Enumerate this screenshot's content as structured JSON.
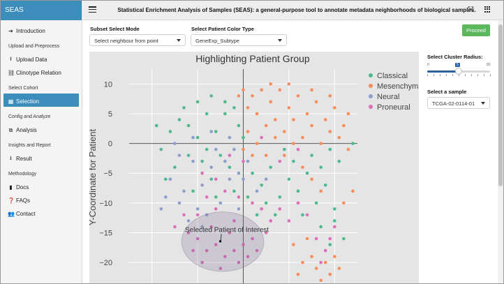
{
  "app": {
    "brand": "SEAS",
    "title": "Statistical Enrichment Analysis of Samples (SEAS): a general-purpose tool to annotate metadata neighborhoods of biological samples."
  },
  "sidebar": {
    "intro": {
      "label": "Introduction",
      "icon": "arrow-right-icon"
    },
    "header_upload": "Upload and Preprocess",
    "upload_data": {
      "label": "Upload Data",
      "icon": "upload-icon"
    },
    "clinotype": {
      "label": "Clinotype Relation",
      "icon": "share-nodes-icon"
    },
    "header_cohort": "Select Cohort",
    "selection": {
      "label": "Selection",
      "icon": "table-icon"
    },
    "header_config": "Config and Analyze",
    "analysis": {
      "label": "Analysis",
      "icon": "network-icon"
    },
    "header_insights": "Insights and Report",
    "result": {
      "label": "Result",
      "icon": "download-icon"
    },
    "header_method": "Methodology",
    "docs": {
      "label": "Docs",
      "icon": "book-icon"
    },
    "faqs": {
      "label": "FAQs",
      "icon": "question-circle-icon"
    },
    "contact": {
      "label": "Contact",
      "icon": "users-icon"
    }
  },
  "controls": {
    "subset_mode": {
      "label": "Subset Select Mode",
      "value": "Select neighbour from point"
    },
    "color_type": {
      "label": "Select Patient Color Type",
      "value": "GeneExp_Subtype"
    },
    "proceed": "Proceed",
    "cluster_radius": {
      "label": "Select Cluster Radius:",
      "min": "0",
      "max": "10",
      "value": "5",
      "fraction": 0.5
    },
    "sample": {
      "label": "Select a sample",
      "value": "TCGA-02-0114-01"
    }
  },
  "chart_data": {
    "type": "scatter",
    "title": "Highlighting Patient Group",
    "ylabel": "Y-Coordinate for Patient",
    "xlabel": "",
    "ylim": [
      -23.5,
      12.5
    ],
    "xlim": [
      -25,
      25
    ],
    "yticks": [
      10,
      5,
      0,
      -5,
      -10,
      -15,
      -20
    ],
    "grid": true,
    "legend_position": "top-right",
    "colors": {
      "Classical": "#4cba8c",
      "Mesenchymal": "#f68d5b",
      "Neural": "#8b9fcf",
      "Proneural": "#de6dbb"
    },
    "legend": [
      "Classical",
      "Mesenchymal",
      "Neural",
      "Proneural"
    ],
    "series": [
      {
        "name": "Classical",
        "points": [
          [
            -16,
            2
          ],
          [
            -14,
            4
          ],
          [
            -12,
            3
          ],
          [
            -10,
            1
          ],
          [
            -8,
            5
          ],
          [
            -6,
            2
          ],
          [
            -4,
            5
          ],
          [
            -2,
            6
          ],
          [
            -15,
            -4
          ],
          [
            -12,
            -2
          ],
          [
            -9,
            -3
          ],
          [
            -7,
            -6
          ],
          [
            -5,
            -2
          ],
          [
            -3,
            -4
          ],
          [
            -13,
            6
          ],
          [
            -10,
            7
          ],
          [
            -7,
            8
          ],
          [
            -4,
            7
          ],
          [
            -1,
            3
          ],
          [
            2,
            -5
          ],
          [
            4,
            -7
          ],
          [
            6,
            -4
          ],
          [
            8,
            -9
          ],
          [
            10,
            -6
          ],
          [
            12,
            -8
          ],
          [
            14,
            -5
          ],
          [
            16,
            -10
          ],
          [
            18,
            -7
          ],
          [
            20,
            -11
          ],
          [
            15,
            -2
          ],
          [
            17,
            -4
          ],
          [
            19,
            -1
          ],
          [
            21,
            -3
          ],
          [
            11,
            -3
          ],
          [
            9,
            -1
          ],
          [
            5,
            -10
          ],
          [
            3,
            -12
          ],
          [
            7,
            -12
          ],
          [
            13,
            -12
          ],
          [
            -18,
            -1
          ],
          [
            -17,
            -6
          ],
          [
            -11,
            -8
          ],
          [
            -6,
            -9
          ],
          [
            -2,
            -8
          ],
          [
            1,
            -9
          ],
          [
            17,
            -14
          ],
          [
            20,
            -13
          ],
          [
            22,
            -16
          ],
          [
            19,
            -17
          ],
          [
            -19,
            3
          ],
          [
            -8,
            -1
          ],
          [
            0,
            1
          ],
          [
            24,
            0
          ]
        ]
      },
      {
        "name": "Mesenchymal",
        "points": [
          [
            0,
            9
          ],
          [
            2,
            8
          ],
          [
            4,
            9
          ],
          [
            6,
            7
          ],
          [
            8,
            9
          ],
          [
            10,
            6
          ],
          [
            12,
            8
          ],
          [
            14,
            5
          ],
          [
            16,
            7
          ],
          [
            18,
            4
          ],
          [
            20,
            6
          ],
          [
            22,
            3
          ],
          [
            3,
            5
          ],
          [
            5,
            3
          ],
          [
            7,
            4
          ],
          [
            9,
            2
          ],
          [
            11,
            4
          ],
          [
            13,
            1
          ],
          [
            15,
            3
          ],
          [
            17,
            0
          ],
          [
            19,
            2
          ],
          [
            21,
            1
          ],
          [
            23,
            -1
          ],
          [
            1,
            2
          ],
          [
            3,
            0
          ],
          [
            5,
            -2
          ],
          [
            7,
            1
          ],
          [
            9,
            -2
          ],
          [
            11,
            0
          ],
          [
            13,
            -4
          ],
          [
            15,
            -6
          ],
          [
            17,
            -8
          ],
          [
            1,
            6
          ],
          [
            6,
            10
          ],
          [
            10,
            10
          ],
          [
            15,
            9
          ],
          [
            19,
            8
          ],
          [
            23,
            5
          ],
          [
            14,
            -16
          ],
          [
            15,
            -19
          ],
          [
            16,
            -21
          ],
          [
            17,
            -23
          ],
          [
            18,
            -20
          ],
          [
            19,
            -22
          ],
          [
            20,
            -19
          ],
          [
            21,
            -21
          ],
          [
            13,
            -20
          ],
          [
            12,
            -22
          ],
          [
            11,
            -17
          ],
          [
            22,
            -10
          ],
          [
            24,
            -8
          ],
          [
            2,
            -2
          ],
          [
            0,
            -1
          ],
          [
            -1,
            8
          ]
        ]
      },
      {
        "name": "Neural",
        "points": [
          [
            -14,
            -2
          ],
          [
            -11,
            -3
          ],
          [
            -9,
            -7
          ],
          [
            -7,
            -4
          ],
          [
            -5,
            -10
          ],
          [
            -3,
            -6
          ],
          [
            -1,
            -5
          ],
          [
            -13,
            -8
          ],
          [
            -10,
            -11
          ],
          [
            -16,
            -6
          ],
          [
            -12,
            -13
          ],
          [
            -8,
            -12
          ],
          [
            -6,
            -1
          ],
          [
            -4,
            -3
          ],
          [
            -2,
            -1
          ],
          [
            -15,
            0
          ],
          [
            -11,
            1
          ],
          [
            -7,
            2
          ],
          [
            -3,
            1
          ],
          [
            -17,
            -9
          ],
          [
            0,
            -6
          ],
          [
            1,
            -3
          ],
          [
            3,
            -8
          ],
          [
            5,
            -6
          ],
          [
            -18,
            -11
          ],
          [
            -14,
            -10
          ],
          [
            -9,
            -14
          ],
          [
            -1,
            -11
          ]
        ]
      },
      {
        "name": "Proneural",
        "points": [
          [
            -12,
            -15
          ],
          [
            -10,
            -16
          ],
          [
            -8,
            -18
          ],
          [
            -6,
            -17
          ],
          [
            -4,
            -19
          ],
          [
            -2,
            -18
          ],
          [
            0,
            -17
          ],
          [
            2,
            -16
          ],
          [
            -3,
            -15
          ],
          [
            -7,
            -14
          ],
          [
            -11,
            -18
          ],
          [
            -9,
            -20
          ],
          [
            -5,
            -21
          ],
          [
            -1,
            -20
          ],
          [
            1,
            -19
          ],
          [
            3,
            -18
          ],
          [
            5,
            -15
          ],
          [
            -13,
            -12
          ],
          [
            -10,
            -12
          ],
          [
            -6,
            -11
          ],
          [
            -2,
            -13
          ],
          [
            6,
            -13
          ],
          [
            8,
            -11
          ],
          [
            -15,
            -14
          ],
          [
            -4,
            -8
          ],
          [
            -1,
            -9
          ],
          [
            2,
            -10
          ],
          [
            4,
            -11
          ],
          [
            -8,
            -9
          ],
          [
            10,
            -13
          ],
          [
            12,
            -10
          ],
          [
            14,
            -12
          ],
          [
            16,
            -16
          ],
          [
            18,
            -18
          ],
          [
            -3,
            -2
          ],
          [
            0,
            -3
          ],
          [
            8,
            -3
          ],
          [
            12,
            -1
          ],
          [
            4,
            1
          ],
          [
            -6,
            -6
          ],
          [
            -9,
            -5
          ],
          [
            17,
            -20
          ],
          [
            19,
            -16
          ],
          [
            20,
            -14
          ]
        ]
      }
    ],
    "highlight": {
      "label": "Selected Patient of Interest",
      "center": [
        -4.5,
        -16.5
      ],
      "radius_x": 9,
      "radius_y": 5
    }
  }
}
